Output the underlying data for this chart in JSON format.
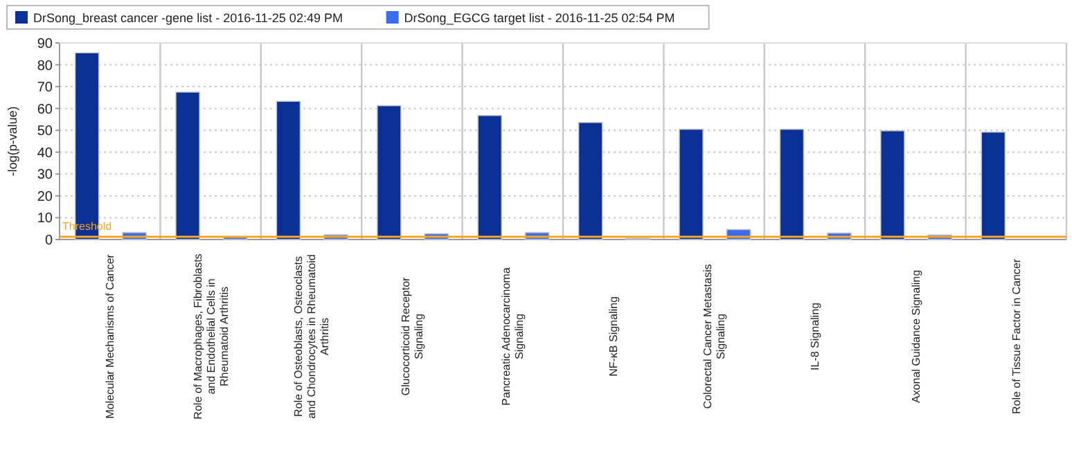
{
  "chart_data": {
    "type": "bar",
    "ylabel": "-log(p-value)",
    "categories": [
      "Molecular Mechanisms of Cancer",
      "Role of Macrophages, Fibroblasts and Endothelial Cells in Rheumatoid Arthritis",
      "Role of Osteoblasts, Osteoclasts and Chondrocytes in Rheumatoid Arthritis",
      "Glucocorticoid Receptor Signaling",
      "Pancreatic Adenocarcinoma Signaling",
      "NF-κB Signaling",
      "Colorectal Cancer Metastasis Signaling",
      "IL-8 Signaling",
      "Axonal Guidance Signaling",
      "Role of Tissue Factor in Cancer"
    ],
    "series": [
      {
        "name": "DrSong_breast cancer -gene list - 2016-11-25 02:49 PM",
        "color": "#0a3096",
        "values": [
          85.5,
          67.5,
          63.3,
          61.3,
          56.8,
          53.6,
          50.5,
          50.5,
          49.8,
          49.2
        ]
      },
      {
        "name": "DrSong_EGCG target list - 2016-11-25 02:54 PM",
        "color": "#3b6cf0",
        "values": [
          3.2,
          1.1,
          2.2,
          2.7,
          3.2,
          0.6,
          4.6,
          3,
          2.1,
          null
        ]
      }
    ],
    "ylim": [
      0,
      90
    ],
    "yticks": [
      0,
      10,
      20,
      30,
      40,
      50,
      60,
      70,
      80,
      90
    ],
    "grid": true,
    "legend": "top left",
    "ref_lines": [
      {
        "axis": "y",
        "value": 1.3,
        "label": "Threshold",
        "color": "#f5a623"
      }
    ]
  }
}
